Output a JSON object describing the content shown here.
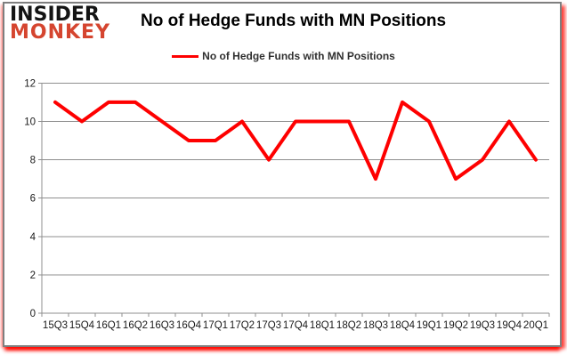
{
  "header": {
    "logo": {
      "line1": "INSIDER",
      "line2": "MONKEY"
    },
    "title": "No of Hedge Funds with MN Positions"
  },
  "legend": {
    "label": "No of Hedge Funds with MN Positions"
  },
  "colors": {
    "series_line": "#fe0000",
    "grid": "#8f8f8f",
    "axis_text": "#1a1a1a",
    "logo_black": "#141414",
    "logo_red": "#d5452f",
    "frame_border": "#7f7f7f"
  },
  "chart_data": {
    "type": "line",
    "title": "No of Hedge Funds with MN Positions",
    "series_name": "No of Hedge Funds with MN Positions",
    "categories": [
      "15Q3",
      "15Q4",
      "16Q1",
      "16Q2",
      "16Q3",
      "16Q4",
      "17Q1",
      "17Q2",
      "17Q3",
      "17Q4",
      "18Q1",
      "18Q2",
      "18Q3",
      "18Q4",
      "19Q1",
      "19Q2",
      "19Q3",
      "19Q4",
      "20Q1"
    ],
    "values": [
      11,
      10,
      11,
      11,
      10,
      9,
      9,
      10,
      8,
      10,
      10,
      10,
      7,
      11,
      10,
      7,
      8,
      10,
      8
    ],
    "ylim": [
      0,
      12
    ],
    "ytick_step": 2,
    "ytick_labels": [
      "0",
      "2",
      "4",
      "6",
      "8",
      "10",
      "12"
    ],
    "grid": true,
    "legend_position": "top",
    "line_color": "#fe0000",
    "grid_color": "#8f8f8f"
  }
}
